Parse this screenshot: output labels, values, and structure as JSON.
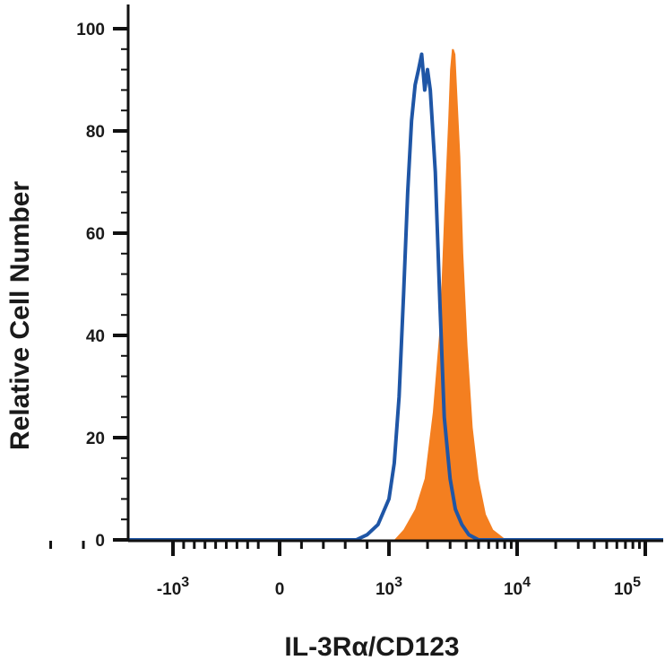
{
  "chart_data": {
    "type": "area",
    "xlabel": "IL-3Rα/CD123",
    "ylabel": "Relative Cell Number",
    "x_scale": "biexponential",
    "ylim": [
      0,
      100
    ],
    "yticks": [
      0,
      20,
      40,
      60,
      80,
      100
    ],
    "xticks": [
      {
        "base": "-10",
        "exp": "3"
      },
      {
        "base": "0",
        "exp": ""
      },
      {
        "base": "10",
        "exp": "3"
      },
      {
        "base": "10",
        "exp": "4"
      },
      {
        "base": "10",
        "exp": "5"
      }
    ],
    "grid": false,
    "series": [
      {
        "style": "filled",
        "color": "#f47f20",
        "x": [
          1100,
          1300,
          1600,
          1900,
          2200,
          2500,
          2700,
          2900,
          3000,
          3100,
          3200,
          3300,
          3400,
          3600,
          3800,
          4100,
          4500,
          5000,
          5700,
          6500,
          7300,
          8200
        ],
        "y": [
          0,
          2,
          6,
          12,
          25,
          42,
          64,
          82,
          92,
          96,
          96,
          95,
          88,
          75,
          56,
          38,
          22,
          12,
          5,
          2,
          1,
          0
        ]
      },
      {
        "style": "outline",
        "color": "#1f56a6",
        "x": [
          500,
          700,
          800,
          900,
          1000,
          1100,
          1200,
          1300,
          1400,
          1500,
          1600,
          1700,
          1800,
          1900,
          2000,
          2100,
          2300,
          2500,
          2700,
          3000,
          3300,
          3700,
          4200,
          5000,
          6000,
          7000
        ],
        "y": [
          0,
          0,
          1,
          3,
          8,
          15,
          28,
          48,
          68,
          82,
          89,
          92,
          95,
          88,
          92,
          88,
          72,
          46,
          24,
          12,
          6,
          3,
          1,
          0,
          0,
          0
        ]
      }
    ]
  }
}
